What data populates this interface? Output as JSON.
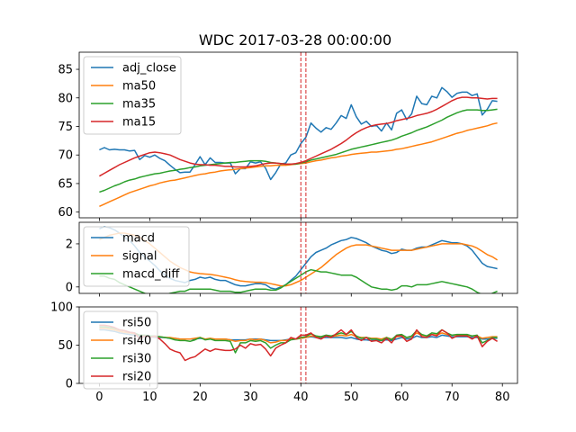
{
  "chart_data": {
    "title": "WDC 2017-03-28 00:00:00",
    "x_ticks": [
      0,
      10,
      20,
      30,
      40,
      50,
      60,
      70,
      80
    ],
    "xlim": [
      -4,
      83
    ],
    "markers": [
      40,
      41
    ],
    "marker_color": "#d62728",
    "panels": [
      {
        "type": "line",
        "ylim": [
          59,
          88
        ],
        "y_ticks": [
          60,
          65,
          70,
          75,
          80,
          85
        ],
        "legend_location": "upper left",
        "series": [
          {
            "name": "adj_close",
            "color": "#1f77b4",
            "values": [
              70.9,
              71.3,
              70.9,
              71.0,
              70.9,
              70.9,
              70.7,
              70.8,
              69.2,
              69.9,
              69.6,
              70.0,
              69.4,
              69.0,
              68.2,
              67.5,
              66.9,
              67.0,
              67.0,
              68.3,
              69.7,
              68.3,
              69.5,
              68.7,
              68.7,
              68.6,
              68.6,
              66.7,
              67.6,
              67.6,
              68.8,
              68.6,
              68.8,
              67.7,
              65.7,
              66.9,
              68.4,
              68.6,
              70.0,
              70.4,
              72.0,
              73.1,
              75.6,
              74.7,
              74.0,
              74.8,
              74.5,
              75.6,
              76.9,
              76.4,
              78.8,
              76.7,
              75.4,
              75.9,
              75.0,
              75.2,
              74.2,
              75.6,
              74.4,
              77.3,
              77.9,
              76.2,
              77.2,
              80.3,
              79.0,
              78.8,
              80.3,
              80.0,
              81.8,
              81.1,
              80.1,
              80.8,
              81.0,
              81.0,
              80.4,
              80.7,
              77.0,
              78.0,
              79.5,
              79.4
            ]
          },
          {
            "name": "ma50",
            "color": "#ff7f0e",
            "values": [
              61.0,
              61.4,
              61.8,
              62.2,
              62.6,
              63.0,
              63.4,
              63.7,
              64.0,
              64.3,
              64.6,
              64.8,
              65.1,
              65.3,
              65.5,
              65.6,
              65.8,
              66.0,
              66.2,
              66.4,
              66.6,
              66.7,
              66.9,
              67.0,
              67.2,
              67.3,
              67.4,
              67.5,
              67.6,
              67.7,
              67.8,
              67.9,
              68.0,
              68.1,
              68.1,
              68.2,
              68.2,
              68.2,
              68.3,
              68.4,
              68.5,
              68.6,
              68.8,
              69.0,
              69.1,
              69.3,
              69.5,
              69.6,
              69.8,
              69.9,
              70.1,
              70.2,
              70.3,
              70.4,
              70.5,
              70.5,
              70.6,
              70.7,
              70.8,
              71.0,
              71.1,
              71.3,
              71.5,
              71.7,
              71.9,
              72.1,
              72.3,
              72.6,
              72.9,
              73.2,
              73.5,
              73.8,
              74.0,
              74.3,
              74.5,
              74.7,
              74.9,
              75.1,
              75.4,
              75.6
            ]
          },
          {
            "name": "ma35",
            "color": "#2ca02c",
            "values": [
              63.5,
              63.8,
              64.2,
              64.6,
              64.9,
              65.3,
              65.6,
              65.8,
              66.1,
              66.3,
              66.5,
              66.7,
              66.8,
              67.0,
              67.2,
              67.3,
              67.5,
              67.6,
              67.8,
              67.9,
              68.1,
              68.2,
              68.3,
              68.4,
              68.5,
              68.6,
              68.7,
              68.7,
              68.8,
              68.9,
              69.0,
              69.0,
              69.0,
              68.9,
              68.7,
              68.6,
              68.5,
              68.4,
              68.4,
              68.4,
              68.6,
              68.8,
              69.1,
              69.3,
              69.5,
              69.7,
              69.9,
              70.1,
              70.4,
              70.7,
              71.0,
              71.2,
              71.4,
              71.6,
              71.8,
              72.0,
              72.2,
              72.4,
              72.6,
              72.9,
              73.3,
              73.6,
              73.9,
              74.3,
              74.6,
              74.9,
              75.3,
              75.7,
              76.1,
              76.6,
              77.0,
              77.4,
              77.7,
              77.9,
              77.9,
              77.9,
              77.8,
              77.8,
              77.9,
              78.0
            ]
          },
          {
            "name": "ma15",
            "color": "#d62728",
            "values": [
              66.3,
              66.8,
              67.3,
              67.8,
              68.3,
              68.7,
              69.1,
              69.5,
              69.8,
              70.1,
              70.4,
              70.5,
              70.4,
              70.2,
              70.0,
              69.6,
              69.2,
              68.9,
              68.6,
              68.4,
              68.3,
              68.3,
              68.2,
              68.2,
              68.1,
              68.0,
              68.0,
              67.9,
              67.9,
              67.9,
              68.0,
              68.1,
              68.3,
              68.5,
              68.6,
              68.6,
              68.5,
              68.4,
              68.4,
              68.5,
              68.7,
              69.0,
              69.4,
              69.8,
              70.2,
              70.6,
              71.0,
              71.5,
              72.0,
              72.6,
              73.3,
              73.9,
              74.4,
              74.8,
              75.1,
              75.3,
              75.4,
              75.5,
              75.7,
              76.0,
              76.2,
              76.4,
              76.6,
              76.9,
              77.1,
              77.3,
              77.6,
              78.0,
              78.5,
              79.0,
              79.5,
              79.9,
              80.1,
              80.1,
              80.0,
              80.0,
              79.9,
              79.8,
              79.9,
              79.9
            ]
          }
        ]
      },
      {
        "type": "line",
        "ylim": [
          -0.3,
          3.0
        ],
        "y_ticks": [
          0,
          2
        ],
        "legend_location": "upper left",
        "series": [
          {
            "name": "macd",
            "color": "#1f77b4",
            "values": [
              2.7,
              2.8,
              2.75,
              2.65,
              2.5,
              2.3,
              2.15,
              1.9,
              1.6,
              1.4,
              1.2,
              1.0,
              0.75,
              0.55,
              0.4,
              0.3,
              0.25,
              0.2,
              0.3,
              0.35,
              0.45,
              0.4,
              0.45,
              0.35,
              0.3,
              0.3,
              0.2,
              0.1,
              0.05,
              0.05,
              0.1,
              0.15,
              0.15,
              0.1,
              -0.05,
              -0.1,
              0.0,
              0.1,
              0.3,
              0.5,
              0.8,
              1.1,
              1.4,
              1.6,
              1.7,
              1.8,
              1.95,
              2.05,
              2.15,
              2.2,
              2.3,
              2.25,
              2.15,
              2.05,
              1.9,
              1.8,
              1.7,
              1.65,
              1.55,
              1.6,
              1.75,
              1.7,
              1.7,
              1.8,
              1.85,
              1.85,
              1.95,
              2.05,
              2.15,
              2.1,
              2.05,
              2.05,
              2.0,
              1.9,
              1.7,
              1.4,
              1.1,
              0.95,
              0.9,
              0.85
            ]
          },
          {
            "name": "signal",
            "color": "#ff7f0e",
            "values": [
              2.2,
              2.3,
              2.4,
              2.45,
              2.5,
              2.5,
              2.45,
              2.4,
              2.3,
              2.15,
              2.0,
              1.8,
              1.6,
              1.4,
              1.2,
              1.05,
              0.9,
              0.8,
              0.7,
              0.65,
              0.62,
              0.6,
              0.58,
              0.55,
              0.5,
              0.45,
              0.4,
              0.33,
              0.28,
              0.25,
              0.23,
              0.22,
              0.22,
              0.2,
              0.15,
              0.1,
              0.05,
              0.05,
              0.1,
              0.2,
              0.3,
              0.45,
              0.6,
              0.75,
              0.9,
              1.1,
              1.3,
              1.5,
              1.65,
              1.8,
              1.9,
              1.95,
              1.95,
              1.95,
              1.9,
              1.85,
              1.8,
              1.75,
              1.7,
              1.7,
              1.7,
              1.7,
              1.7,
              1.75,
              1.8,
              1.85,
              1.9,
              1.95,
              2.0,
              2.0,
              2.0,
              2.0,
              2.0,
              1.95,
              1.9,
              1.8,
              1.65,
              1.5,
              1.4,
              1.25
            ]
          },
          {
            "name": "macd_diff",
            "color": "#2ca02c",
            "values": [
              0.5,
              0.5,
              0.4,
              0.35,
              0.2,
              0.1,
              0.0,
              -0.1,
              -0.2,
              -0.3,
              -0.35,
              -0.4,
              -0.45,
              -0.4,
              -0.3,
              -0.25,
              -0.2,
              -0.2,
              -0.1,
              -0.1,
              -0.1,
              -0.1,
              -0.1,
              -0.15,
              -0.2,
              -0.2,
              -0.2,
              -0.25,
              -0.25,
              -0.2,
              -0.15,
              -0.1,
              -0.1,
              -0.1,
              -0.15,
              -0.15,
              -0.05,
              0.1,
              0.25,
              0.4,
              0.55,
              0.7,
              0.8,
              0.75,
              0.7,
              0.7,
              0.65,
              0.6,
              0.55,
              0.55,
              0.55,
              0.45,
              0.3,
              0.15,
              0.0,
              -0.05,
              -0.1,
              -0.1,
              -0.15,
              -0.1,
              0.05,
              0.05,
              0.0,
              0.1,
              0.1,
              0.1,
              0.15,
              0.2,
              0.25,
              0.2,
              0.15,
              0.1,
              0.05,
              0.0,
              -0.1,
              -0.25,
              -0.35,
              -0.4,
              -0.3,
              -0.2
            ]
          }
        ]
      },
      {
        "type": "line",
        "ylim": [
          0,
          100
        ],
        "y_ticks": [
          0,
          50,
          100
        ],
        "legend_location": "upper left",
        "series": [
          {
            "name": "rsi50",
            "color": "#1f77b4",
            "values": [
              70,
              70,
              69,
              68,
              66,
              65,
              64,
              63,
              62,
              61,
              61,
              60,
              60,
              60,
              59,
              59,
              58,
              58,
              58,
              58,
              59,
              58,
              58,
              58,
              58,
              58,
              57,
              57,
              57,
              57,
              58,
              58,
              58,
              57,
              56,
              56,
              56,
              57,
              58,
              58,
              59,
              60,
              61,
              60,
              60,
              60,
              60,
              60,
              60,
              59,
              60,
              58,
              57,
              57,
              56,
              56,
              56,
              57,
              56,
              58,
              60,
              58,
              59,
              62,
              60,
              60,
              61,
              60,
              63,
              62,
              61,
              61,
              61,
              61,
              60,
              60,
              58,
              58,
              59,
              59
            ]
          },
          {
            "name": "rsi40",
            "color": "#ff7f0e",
            "values": [
              72,
              72,
              71,
              70,
              68,
              67,
              66,
              65,
              63,
              62,
              62,
              61,
              61,
              60,
              60,
              59,
              58,
              58,
              58,
              59,
              60,
              58,
              59,
              58,
              58,
              58,
              57,
              55,
              56,
              56,
              58,
              57,
              58,
              56,
              53,
              54,
              56,
              56,
              58,
              58,
              59,
              60,
              62,
              61,
              61,
              62,
              61,
              62,
              63,
              62,
              64,
              61,
              60,
              60,
              59,
              59,
              58,
              60,
              58,
              61,
              62,
              60,
              61,
              66,
              63,
              62,
              64,
              63,
              66,
              64,
              63,
              63,
              63,
              63,
              62,
              62,
              59,
              60,
              61,
              61
            ]
          },
          {
            "name": "rsi30",
            "color": "#2ca02c",
            "values": [
              74,
              74,
              73,
              72,
              70,
              69,
              67,
              66,
              63,
              63,
              62,
              62,
              61,
              60,
              59,
              57,
              56,
              56,
              55,
              57,
              60,
              57,
              58,
              56,
              56,
              56,
              55,
              40,
              53,
              53,
              56,
              55,
              56,
              53,
              46,
              50,
              53,
              53,
              57,
              58,
              60,
              61,
              65,
              62,
              61,
              63,
              62,
              64,
              66,
              64,
              68,
              62,
              59,
              60,
              58,
              58,
              56,
              60,
              57,
              63,
              64,
              60,
              62,
              69,
              64,
              62,
              66,
              65,
              70,
              66,
              63,
              64,
              64,
              64,
              62,
              63,
              53,
              56,
              60,
              60
            ]
          },
          {
            "name": "rsi20",
            "color": "#d62728",
            "values": [
              76,
              76,
              75,
              73,
              70,
              69,
              67,
              66,
              58,
              62,
              60,
              62,
              58,
              52,
              45,
              42,
              40,
              30,
              33,
              35,
              40,
              45,
              42,
              45,
              44,
              43,
              43,
              45,
              50,
              46,
              52,
              50,
              51,
              45,
              36,
              46,
              50,
              53,
              60,
              58,
              63,
              63,
              66,
              60,
              58,
              62,
              60,
              65,
              70,
              64,
              70,
              60,
              56,
              60,
              55,
              56,
              53,
              59,
              53,
              62,
              62,
              55,
              58,
              70,
              61,
              60,
              64,
              62,
              70,
              66,
              59,
              62,
              62,
              62,
              58,
              62,
              48,
              55,
              59,
              55
            ]
          }
        ]
      }
    ]
  }
}
